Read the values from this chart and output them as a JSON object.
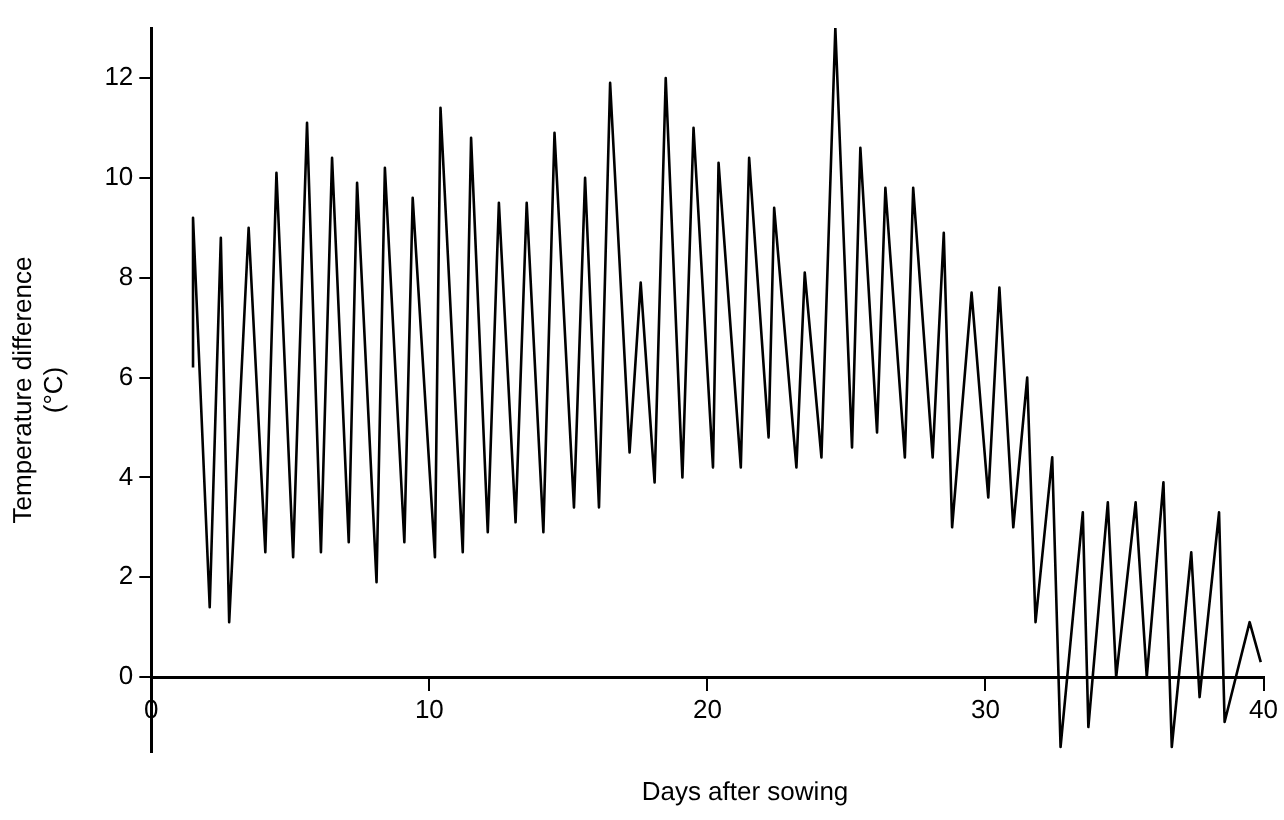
{
  "chart_data": {
    "type": "line",
    "xlabel": "Days after sowing",
    "ylabel": "Temperature difference\n(°C)",
    "x": [
      1.5,
      1.5,
      2.1,
      2.5,
      2.8,
      3.5,
      4.1,
      4.5,
      5.1,
      5.6,
      6.1,
      6.5,
      7.1,
      7.4,
      8.1,
      8.4,
      9.1,
      9.4,
      10.2,
      10.4,
      11.2,
      11.5,
      12.1,
      12.5,
      13.1,
      13.5,
      14.1,
      14.5,
      15.2,
      15.6,
      16.1,
      16.5,
      17.2,
      17.6,
      18.1,
      18.5,
      19.1,
      19.5,
      20.2,
      20.4,
      21.2,
      21.5,
      22.2,
      22.4,
      23.2,
      23.5,
      24.1,
      24.6,
      25.2,
      25.5,
      26.1,
      26.4,
      27.1,
      27.4,
      28.1,
      28.5,
      28.8,
      29.5,
      30.1,
      30.5,
      31.0,
      31.5,
      31.8,
      32.4,
      32.7,
      33.5,
      33.7,
      34.4,
      34.7,
      35.4,
      35.8,
      36.4,
      36.7,
      37.4,
      37.7,
      38.4,
      38.6,
      39.5,
      39.9
    ],
    "series": [
      {
        "color": "#000000",
        "values": [
          6.2,
          9.2,
          1.4,
          8.8,
          1.1,
          9.0,
          2.5,
          10.1,
          2.4,
          11.1,
          2.5,
          10.4,
          2.7,
          9.9,
          1.9,
          10.2,
          2.7,
          9.6,
          2.4,
          11.4,
          2.5,
          10.8,
          2.9,
          9.5,
          3.1,
          9.5,
          2.9,
          10.9,
          3.4,
          10.0,
          3.4,
          11.9,
          4.5,
          7.9,
          3.9,
          12.0,
          4.0,
          11.0,
          4.2,
          10.3,
          4.2,
          10.4,
          4.8,
          9.4,
          4.2,
          8.1,
          4.4,
          13.0,
          4.6,
          10.6,
          4.9,
          9.8,
          4.4,
          9.8,
          4.4,
          8.9,
          3.0,
          7.7,
          3.6,
          7.8,
          3.0,
          6.0,
          1.1,
          4.4,
          -1.4,
          3.3,
          -1.0,
          3.5,
          0.0,
          3.5,
          0.0,
          3.9,
          -1.4,
          2.5,
          -0.4,
          3.3,
          -0.9,
          1.1,
          0.3
        ]
      }
    ],
    "xlim": [
      0,
      40
    ],
    "xticks": [
      0,
      10,
      20,
      30,
      40
    ],
    "ylim": [
      -1.5,
      13
    ],
    "yticks": [
      0,
      2,
      4,
      6,
      8,
      10,
      12
    ],
    "grid": false,
    "legend": false,
    "marker": "none",
    "line_style": "solid"
  }
}
